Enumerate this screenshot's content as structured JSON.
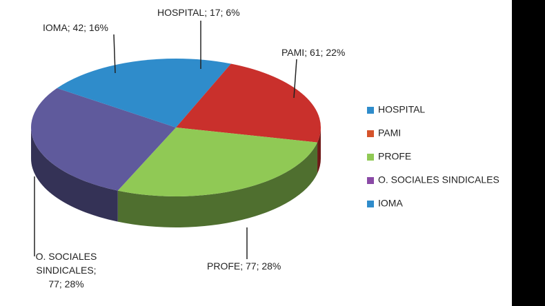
{
  "chart_data": {
    "type": "pie",
    "categories": [
      "HOSPITAL",
      "PAMI",
      "PROFE",
      "O. SOCIALES SINDICALES",
      "IOMA"
    ],
    "values": [
      17,
      61,
      77,
      77,
      42
    ],
    "value_labels": [
      "HOSPITAL; 17; 6%",
      "PAMI; 61; 22%",
      "PROFE; 77; 28%",
      "O. SOCIALES SINDICALES; 77; 28%",
      "IOMA; 42; 16%"
    ],
    "colors": [
      "#2f8ccb",
      "#c9302c",
      "#90c955",
      "#5f5a9c",
      "#2f8ccb"
    ],
    "legend_colors": [
      "#2f8ccb",
      "#d5532b",
      "#90c955",
      "#8a4aa6",
      "#2f8ccb"
    ],
    "legend": "right"
  }
}
